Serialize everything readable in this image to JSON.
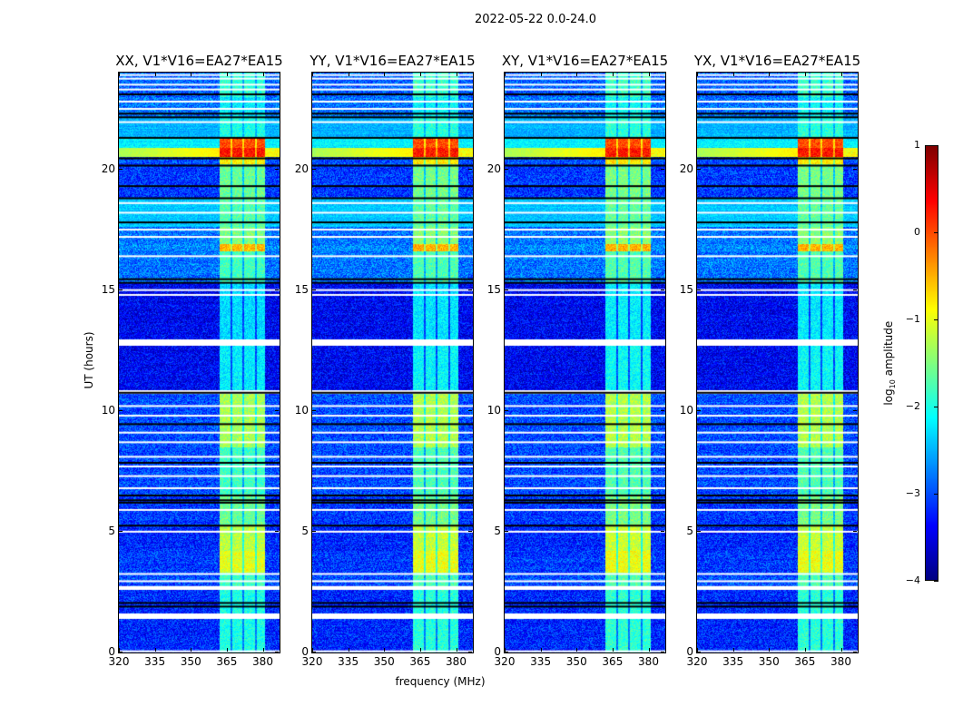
{
  "chart_data": {
    "type": "heatmap",
    "title": "2022-05-22 0.0-24.0",
    "xlabel": "frequency (MHz)",
    "ylabel": "UT (hours)",
    "xlim": [
      320,
      387
    ],
    "ylim": [
      0,
      24
    ],
    "xticks": [
      "320",
      "335",
      "350",
      "365",
      "380"
    ],
    "xtick_values": [
      320,
      335,
      350,
      365,
      380
    ],
    "yticks": [
      "0",
      "5",
      "10",
      "15",
      "20"
    ],
    "ytick_values": [
      0,
      5,
      10,
      15,
      20
    ],
    "panels": [
      {
        "title": "XX, V1*V16=EA27*EA15",
        "scale": 1.0
      },
      {
        "title": "YY, V1*V16=EA27*EA15",
        "scale": 0.97
      },
      {
        "title": "XY, V1*V16=EA27*EA15",
        "scale": 0.95
      },
      {
        "title": "YX, V1*V16=EA27*EA15",
        "scale": 0.96
      }
    ],
    "colorbar": {
      "label_main": "log",
      "label_sub": "10",
      "label_rest": " amplitude",
      "range": [
        -4,
        1
      ],
      "ticks": [
        "1",
        "0",
        "−1",
        "−2",
        "−3",
        "−4"
      ],
      "tick_values": [
        1,
        0,
        -1,
        -2,
        -3,
        -4
      ],
      "colormap": "jet"
    },
    "rfi_channels_mhz": [
      [
        362,
        366.6
      ],
      [
        367.4,
        371.6
      ],
      [
        372.4,
        376.6
      ],
      [
        377.4,
        381
      ]
    ],
    "segments_ut": [
      {
        "ut": [
          0,
          1.4
        ],
        "base": -3.2,
        "rfi": -2.0
      },
      {
        "ut": [
          1.6,
          2.6
        ],
        "base": -3.2,
        "rfi": -2.0
      },
      {
        "ut": [
          2.75,
          3.3
        ],
        "base": -3.0,
        "rfi": -1.8
      },
      {
        "ut": [
          3.3,
          4.2
        ],
        "base": -3.1,
        "rfi": -1.0
      },
      {
        "ut": [
          4.2,
          5.3
        ],
        "base": -3.2,
        "rfi": -1.2
      },
      {
        "ut": [
          5.3,
          6.5
        ],
        "base": -3.1,
        "rfi": -1.6
      },
      {
        "ut": [
          6.5,
          8.5
        ],
        "base": -3.0,
        "rfi": -1.8
      },
      {
        "ut": [
          8.5,
          10.7
        ],
        "base": -3.0,
        "rfi": -1.3
      },
      {
        "ut": [
          10.85,
          12.7
        ],
        "base": -3.4,
        "rfi": -2.2
      },
      {
        "ut": [
          12.95,
          15.3
        ],
        "base": -3.4,
        "rfi": -2.3
      },
      {
        "ut": [
          15.3,
          16.6
        ],
        "base": -2.8,
        "rfi": -1.8
      },
      {
        "ut": [
          16.6,
          16.9
        ],
        "base": -2.7,
        "rfi": -0.5
      },
      {
        "ut": [
          16.9,
          17.6
        ],
        "base": -2.8,
        "rfi": -1.5
      },
      {
        "ut": [
          17.6,
          18.8
        ],
        "base": -2.4,
        "rfi": -1.7
      },
      {
        "ut": [
          18.8,
          20.2
        ],
        "base": -3.1,
        "rfi": -1.6
      },
      {
        "ut": [
          20.2,
          20.5
        ],
        "base": -3.0,
        "rfi": -0.8
      },
      {
        "ut": [
          20.5,
          20.9
        ],
        "base": -0.9,
        "rfi": 0.3
      },
      {
        "ut": [
          20.9,
          21.3
        ],
        "base": -2.2,
        "rfi": 0.0
      },
      {
        "ut": [
          21.3,
          22.2
        ],
        "base": -2.5,
        "rfi": -2.0
      },
      {
        "ut": [
          22.2,
          23.0
        ],
        "base": -2.8,
        "rfi": -2.2
      },
      {
        "ut": [
          23.0,
          24.0
        ],
        "base": -2.9,
        "rfi": -1.9
      }
    ],
    "flagged_ut": [
      [
        1.4,
        1.6
      ],
      [
        2.6,
        2.75
      ],
      [
        10.7,
        10.85
      ],
      [
        12.7,
        12.95
      ],
      0.05,
      2.95,
      3.25,
      5.0,
      5.9,
      6.8,
      7.3,
      7.7,
      8.1,
      8.7,
      9.1,
      9.8,
      10.2,
      14.8,
      15.0,
      16.4,
      17.2,
      17.5,
      18.2,
      18.6,
      21.95,
      22.5,
      22.8,
      23.3,
      23.5,
      23.75,
      23.9
    ],
    "scan_boundaries_ut": [
      1.9,
      2.05,
      5.25,
      6.2,
      6.3,
      6.5,
      7.85,
      9.45,
      10.75,
      15.3,
      15.45,
      17.8,
      18.8,
      19.3,
      20.15,
      20.45,
      21.3,
      22.15,
      22.3,
      23.1
    ]
  }
}
